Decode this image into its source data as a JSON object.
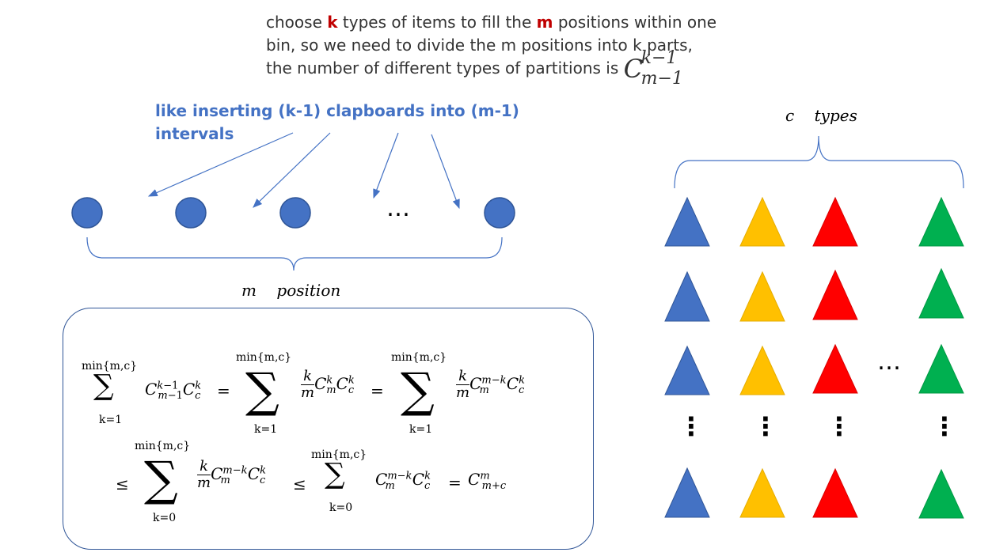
{
  "title": {
    "line1_a": "choose ",
    "k": "k",
    "line1_b": " types of items to fill the ",
    "m": "m",
    "line1_c": " positions within one",
    "line2": "bin, so we need to divide the m positions into k parts,",
    "line3": "the number of different types of partitions is ",
    "comb_base": "C",
    "comb_sup": "k−1",
    "comb_sub": "m−1"
  },
  "note": "like inserting (k-1) clapboards into (m-1) intervals",
  "ellipsis": "…",
  "vellipsis": "⋮",
  "types_label": "c    types",
  "position_label": "m    position",
  "formula": {
    "sum_limit_top": "min{m,c}",
    "sum_limit_k1": "k=1",
    "sum_limit_k0": "k=0",
    "sigma": "∑",
    "eq": "=",
    "le": "≤"
  },
  "colors": {
    "blue": "#4472c4",
    "yellow": "#ffc000",
    "red": "#ff0000",
    "green": "#00b050",
    "circle_fill": "#4472c4",
    "circle_stroke": "#2f5597"
  }
}
